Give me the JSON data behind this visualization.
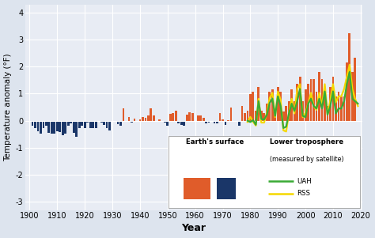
{
  "background_color": "#dde4ee",
  "plot_bg_color": "#e8ecf4",
  "xlabel": "Year",
  "ylabel": "Temperature anomaly (°F)",
  "xlim": [
    1898.5,
    2020.5
  ],
  "ylim": [
    -3.3,
    4.3
  ],
  "yticks": [
    -3,
    -2,
    -1,
    0,
    1,
    2,
    3,
    4
  ],
  "xticks": [
    1900,
    1910,
    1920,
    1930,
    1940,
    1950,
    1960,
    1970,
    1980,
    1990,
    2000,
    2010,
    2020
  ],
  "surface_years": [
    1901,
    1902,
    1903,
    1904,
    1905,
    1906,
    1907,
    1908,
    1909,
    1910,
    1911,
    1912,
    1913,
    1914,
    1915,
    1916,
    1917,
    1918,
    1919,
    1920,
    1921,
    1922,
    1923,
    1924,
    1925,
    1926,
    1927,
    1928,
    1929,
    1930,
    1931,
    1932,
    1933,
    1934,
    1935,
    1936,
    1937,
    1938,
    1939,
    1940,
    1941,
    1942,
    1943,
    1944,
    1945,
    1946,
    1947,
    1948,
    1949,
    1950,
    1951,
    1952,
    1953,
    1954,
    1955,
    1956,
    1957,
    1958,
    1959,
    1960,
    1961,
    1962,
    1963,
    1964,
    1965,
    1966,
    1967,
    1968,
    1969,
    1970,
    1971,
    1972,
    1973,
    1974,
    1975,
    1976,
    1977,
    1978,
    1979,
    1980,
    1981,
    1982,
    1983,
    1984,
    1985,
    1986,
    1987,
    1988,
    1989,
    1990,
    1991,
    1992,
    1993,
    1994,
    1995,
    1996,
    1997,
    1998,
    1999,
    2000,
    2001,
    2002,
    2003,
    2004,
    2005,
    2006,
    2007,
    2008,
    2009,
    2010,
    2011,
    2012,
    2013,
    2014,
    2015,
    2016,
    2017,
    2018
  ],
  "surface_vals": [
    -0.18,
    -0.28,
    -0.38,
    -0.47,
    -0.26,
    -0.18,
    -0.45,
    -0.47,
    -0.48,
    -0.38,
    -0.43,
    -0.53,
    -0.49,
    -0.2,
    -0.09,
    -0.44,
    -0.6,
    -0.28,
    -0.18,
    -0.27,
    -0.07,
    -0.28,
    -0.27,
    -0.27,
    0.0,
    -0.07,
    -0.16,
    -0.27,
    -0.36,
    0.0,
    -0.04,
    -0.14,
    -0.18,
    0.47,
    -0.05,
    0.14,
    -0.07,
    0.09,
    -0.02,
    0.04,
    0.14,
    0.12,
    0.18,
    0.47,
    0.18,
    0.0,
    0.04,
    -0.02,
    -0.07,
    -0.18,
    0.26,
    0.28,
    0.38,
    -0.09,
    -0.16,
    -0.18,
    0.22,
    0.31,
    0.27,
    -0.02,
    0.18,
    0.18,
    0.11,
    -0.09,
    -0.07,
    0.0,
    -0.09,
    -0.09,
    0.27,
    0.04,
    -0.16,
    0.02,
    0.49,
    0.0,
    -0.05,
    -0.18,
    0.54,
    0.27,
    0.36,
    0.99,
    1.08,
    0.38,
    1.26,
    0.36,
    0.29,
    0.63,
    1.08,
    1.17,
    0.45,
    1.26,
    1.08,
    0.34,
    0.54,
    0.72,
    1.17,
    0.72,
    1.35,
    1.62,
    0.72,
    1.17,
    1.35,
    1.53,
    1.53,
    1.08,
    1.8,
    1.53,
    1.26,
    0.54,
    1.26,
    1.62,
    0.9,
    1.08,
    0.9,
    0.9,
    2.16,
    3.24,
    1.8,
    2.34
  ],
  "uah_years": [
    1979,
    1980,
    1981,
    1982,
    1983,
    1984,
    1985,
    1986,
    1987,
    1988,
    1989,
    1990,
    1991,
    1992,
    1993,
    1994,
    1995,
    1996,
    1997,
    1998,
    1999,
    2000,
    2001,
    2002,
    2003,
    2004,
    2005,
    2006,
    2007,
    2008,
    2009,
    2010,
    2011,
    2012,
    2013,
    2014,
    2015,
    2016,
    2017,
    2018,
    2019
  ],
  "uah_vals": [
    0.0,
    -0.05,
    0.02,
    -0.15,
    0.72,
    0.06,
    0.04,
    0.22,
    0.65,
    0.82,
    0.18,
    0.9,
    0.54,
    -0.27,
    -0.22,
    0.27,
    0.63,
    0.36,
    0.72,
    1.17,
    0.18,
    0.13,
    0.63,
    0.81,
    0.54,
    0.45,
    0.81,
    0.45,
    1.08,
    0.22,
    0.54,
    1.08,
    0.27,
    0.45,
    0.45,
    0.72,
    1.35,
    1.8,
    0.81,
    0.72,
    0.63
  ],
  "rss_years": [
    1979,
    1980,
    1981,
    1982,
    1983,
    1984,
    1985,
    1986,
    1987,
    1988,
    1989,
    1990,
    1991,
    1992,
    1993,
    1994,
    1995,
    1996,
    1997,
    1998,
    1999,
    2000,
    2001,
    2002,
    2003,
    2004,
    2005,
    2006,
    2007,
    2008,
    2009,
    2010,
    2011,
    2012,
    2013,
    2014,
    2015,
    2016,
    2017,
    2018,
    2019
  ],
  "rss_vals": [
    -0.05,
    0.14,
    -0.04,
    -0.18,
    0.81,
    -0.07,
    -0.07,
    0.29,
    0.83,
    1.03,
    0.13,
    1.08,
    0.76,
    -0.36,
    -0.4,
    0.27,
    0.81,
    0.27,
    1.17,
    1.35,
    0.13,
    0.29,
    0.63,
    1.03,
    0.54,
    0.4,
    1.03,
    0.54,
    1.35,
    0.22,
    0.76,
    1.35,
    0.68,
    0.9,
    0.9,
    1.17,
    1.62,
    2.07,
    1.17,
    0.81,
    0.54
  ],
  "orange_color": "#e05c2a",
  "navy_color": "#1a3668",
  "green_color": "#3aaa35",
  "yellow_color": "#f5d800",
  "bar_width": 0.8,
  "legend_box_color": "white",
  "legend_edge_color": "#aaaaaa"
}
